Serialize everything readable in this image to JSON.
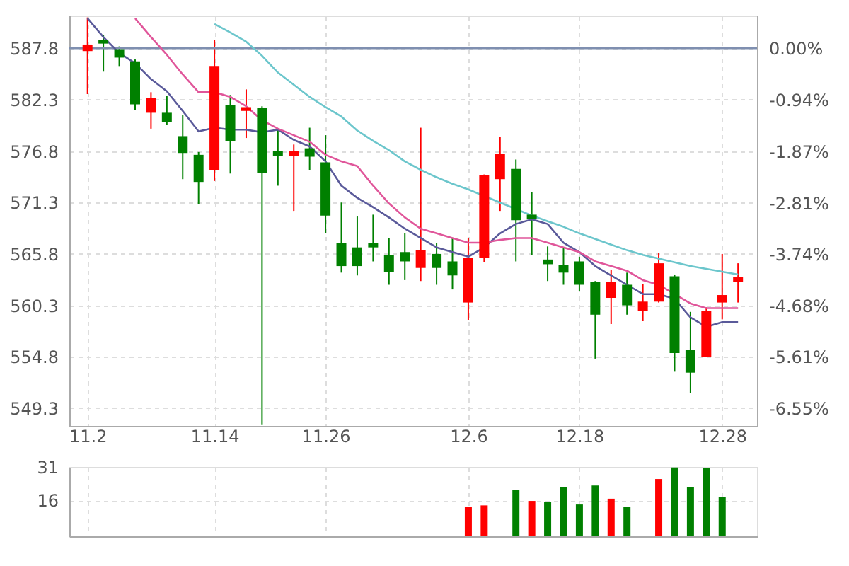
{
  "chart_data": [
    {
      "type": "candlestick",
      "categories": [
        "11.2",
        null,
        null,
        null,
        null,
        null,
        null,
        null,
        "11.14",
        null,
        null,
        null,
        null,
        null,
        null,
        "11.26",
        null,
        null,
        null,
        null,
        null,
        null,
        null,
        null,
        "12.6",
        null,
        null,
        null,
        null,
        null,
        null,
        "12.18",
        null,
        null,
        null,
        null,
        null,
        null,
        null,
        null,
        "12.28",
        null
      ],
      "ohlc": [
        [
          587.5,
          591.1,
          582.9,
          588.2
        ],
        [
          588.7,
          589.2,
          585.3,
          588.3
        ],
        [
          587.7,
          588.0,
          585.9,
          586.8
        ],
        [
          586.4,
          586.6,
          581.2,
          581.8
        ],
        [
          580.9,
          583.1,
          579.2,
          582.5
        ],
        [
          580.9,
          582.7,
          579.6,
          579.9
        ],
        [
          578.4,
          580.7,
          573.8,
          576.6
        ],
        [
          576.4,
          576.7,
          571.1,
          573.5
        ],
        [
          574.8,
          588.7,
          573.6,
          585.9
        ],
        [
          581.7,
          582.8,
          574.4,
          577.9
        ],
        [
          581.1,
          583.4,
          578.2,
          581.5
        ],
        [
          581.4,
          581.6,
          547.5,
          574.5
        ],
        [
          576.8,
          579.2,
          573.1,
          576.3
        ],
        [
          576.3,
          577.5,
          570.4,
          576.8
        ],
        [
          577.1,
          579.3,
          574.8,
          576.2
        ],
        [
          575.6,
          578.5,
          568.0,
          569.9
        ],
        [
          567.0,
          571.3,
          563.8,
          564.5
        ],
        [
          566.5,
          569.8,
          563.5,
          564.5
        ],
        [
          567.0,
          570.0,
          565.0,
          566.5
        ],
        [
          565.7,
          567.5,
          562.5,
          563.9
        ],
        [
          566.0,
          568.0,
          563.0,
          565.0
        ],
        [
          564.3,
          579.3,
          562.9,
          566.2
        ],
        [
          565.8,
          567.0,
          562.5,
          564.3
        ],
        [
          565.0,
          567.5,
          562.0,
          563.5
        ],
        [
          560.6,
          567.5,
          558.7,
          565.4
        ],
        [
          565.4,
          574.3,
          564.9,
          574.2
        ],
        [
          573.8,
          578.3,
          570.4,
          576.5
        ],
        [
          574.9,
          575.9,
          565.0,
          569.4
        ],
        [
          570.0,
          572.4,
          565.7,
          569.5
        ],
        [
          565.2,
          566.6,
          562.9,
          564.7
        ],
        [
          564.6,
          566.5,
          562.5,
          563.8
        ],
        [
          565.0,
          565.5,
          561.8,
          562.5
        ],
        [
          562.8,
          562.9,
          554.6,
          559.3
        ],
        [
          561.1,
          564.1,
          558.3,
          562.8
        ],
        [
          562.5,
          563.8,
          559.3,
          560.3
        ],
        [
          559.7,
          562.6,
          558.6,
          560.7
        ],
        [
          560.7,
          565.9,
          560.6,
          564.8
        ],
        [
          563.4,
          563.6,
          553.2,
          555.2
        ],
        [
          555.5,
          559.6,
          550.9,
          553.1
        ],
        [
          554.8,
          560.1,
          554.8,
          559.7
        ],
        [
          560.6,
          565.8,
          558.8,
          561.4
        ],
        [
          562.8,
          564.8,
          560.6,
          563.3
        ]
      ],
      "colors": [
        "#ff0000",
        "#008000",
        "#008000",
        "#008000",
        "#ff0000",
        "#008000",
        "#008000",
        "#008000",
        "#ff0000",
        "#008000",
        "#ff0000",
        "#008000",
        "#008000",
        "#ff0000",
        "#008000",
        "#008000",
        "#008000",
        "#008000",
        "#008000",
        "#008000",
        "#008000",
        "#ff0000",
        "#008000",
        "#008000",
        "#ff0000",
        "#ff0000",
        "#ff0000",
        "#008000",
        "#008000",
        "#008000",
        "#008000",
        "#008000",
        "#008000",
        "#ff0000",
        "#008000",
        "#ff0000",
        "#ff0000",
        "#008000",
        "#008000",
        "#ff0000",
        "#ff0000",
        "#ff0000"
      ],
      "series": [
        {
          "type": "line",
          "color": "#5a5a9a",
          "values": [
            591.0,
            589.0,
            587.3,
            586.2,
            584.5,
            583.2,
            581.1,
            578.9,
            579.3,
            579.1,
            579.1,
            578.8,
            579.1,
            578.0,
            577.3,
            575.7,
            573.1,
            571.8,
            570.8,
            569.7,
            568.5,
            567.5,
            566.5,
            566.0,
            565.5,
            566.5,
            568.0,
            569.0,
            569.5,
            569.0,
            567.0,
            566.0,
            564.5,
            563.5,
            562.5,
            561.5,
            561.5,
            561.0,
            559.0,
            558.0,
            558.5,
            558.5
          ]
        },
        {
          "type": "line",
          "color": "#e0569a",
          "values": [
            null,
            null,
            null,
            591.0,
            589.0,
            587.1,
            585.0,
            583.1,
            583.1,
            582.6,
            581.6,
            580.1,
            579.2,
            578.5,
            577.8,
            576.4,
            575.7,
            575.2,
            573.1,
            571.2,
            569.7,
            568.5,
            568.0,
            567.5,
            567.0,
            567.0,
            567.3,
            567.5,
            567.5,
            567.0,
            566.5,
            566.0,
            565.0,
            564.5,
            564.0,
            563.0,
            562.5,
            561.5,
            560.5,
            560.0,
            560.0,
            560.0
          ]
        },
        {
          "type": "line",
          "color": "#6cc6cc",
          "values": [
            null,
            null,
            null,
            null,
            null,
            null,
            null,
            null,
            590.4,
            589.5,
            588.5,
            587.0,
            585.2,
            583.9,
            582.6,
            581.5,
            580.5,
            579.0,
            577.9,
            576.9,
            575.7,
            574.8,
            574.0,
            573.3,
            572.7,
            572.0,
            571.3,
            570.6,
            569.9,
            569.3,
            568.7,
            568.0,
            567.4,
            566.8,
            566.2,
            565.7,
            565.3,
            564.9,
            564.5,
            564.2,
            563.9,
            563.6
          ]
        }
      ],
      "ylim": [
        547.4,
        591.3
      ],
      "yticks": [
        549.3,
        554.8,
        560.3,
        565.8,
        571.3,
        576.8,
        582.3,
        587.8
      ],
      "y2lim": [
        -6.87,
        0.595
      ],
      "y2ticks": [
        {
          "value": 0,
          "label": "0.00%"
        },
        {
          "value": -0.94,
          "label": "-0.94%"
        },
        {
          "value": -1.87,
          "label": "-1.87%"
        },
        {
          "value": -2.81,
          "label": "-2.81%"
        },
        {
          "value": -3.74,
          "label": "-3.74%"
        },
        {
          "value": -4.68,
          "label": "-4.68%"
        },
        {
          "value": -5.61,
          "label": "-5.61%"
        },
        {
          "value": -6.55,
          "label": "-6.55%"
        }
      ],
      "ref_lines": [
        {
          "axis": "y",
          "value": 587.8,
          "color": "#7f8fb0",
          "line_style": "solid"
        }
      ],
      "grid": true
    },
    {
      "type": "bar",
      "categories": [
        "11.2",
        null,
        null,
        null,
        null,
        null,
        null,
        null,
        "11.14",
        null,
        null,
        null,
        null,
        null,
        null,
        "11.26",
        null,
        null,
        null,
        null,
        null,
        null,
        null,
        null,
        "12.6",
        null,
        null,
        null,
        null,
        null,
        null,
        "12.18",
        null,
        null,
        null,
        null,
        null,
        null,
        null,
        null,
        "12.28",
        null
      ],
      "values": [
        null,
        null,
        null,
        null,
        null,
        null,
        null,
        null,
        null,
        null,
        null,
        null,
        null,
        null,
        null,
        null,
        null,
        null,
        null,
        null,
        null,
        null,
        null,
        null,
        13.2,
        13.8,
        null,
        20.8,
        15.8,
        15.4,
        22.0,
        14.2,
        22.7,
        16.8,
        13.2,
        null,
        25.6,
        30.8,
        22.1,
        30.6,
        17.7,
        null
      ],
      "colors": [
        "#008000",
        "#008000",
        "#008000",
        "#008000",
        "#008000",
        "#008000",
        "#008000",
        "#008000",
        "#008000",
        "#008000",
        "#008000",
        "#008000",
        "#008000",
        "#008000",
        "#008000",
        "#008000",
        "#008000",
        "#008000",
        "#008000",
        "#008000",
        "#008000",
        "#008000",
        "#008000",
        "#008000",
        "#ff0000",
        "#ff0000",
        "#008000",
        "#008000",
        "#ff0000",
        "#008000",
        "#008000",
        "#008000",
        "#008000",
        "#ff0000",
        "#008000",
        "#008000",
        "#ff0000",
        "#008000",
        "#008000",
        "#008000",
        "#008000",
        "#008000"
      ],
      "ylim": [
        0,
        31
      ],
      "yticks": [
        16,
        31
      ],
      "tick_labels": "y",
      "grid": true
    }
  ]
}
